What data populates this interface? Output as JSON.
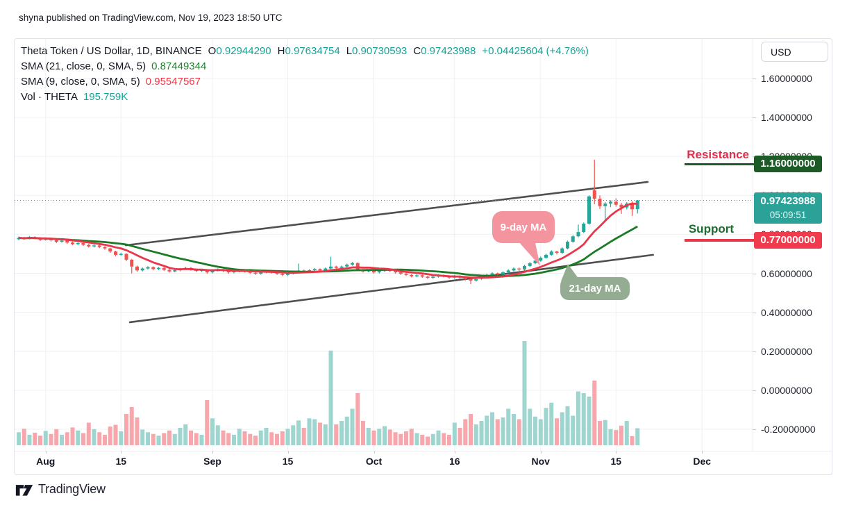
{
  "attribution": "shyna published on TradingView.com, Nov 19, 2023 18:50 UTC",
  "toolbar": {
    "currency_button": "USD"
  },
  "legend": {
    "symbol_title": "Theta Token / US Dollar, 1D, BINANCE",
    "ohlc": [
      {
        "k": "O",
        "v": "0.92944290"
      },
      {
        "k": "H",
        "v": "0.97634754"
      },
      {
        "k": "L",
        "v": "0.90730593"
      },
      {
        "k": "C",
        "v": "0.97423988"
      }
    ],
    "change": "+0.04425604 (+4.76%)",
    "sma21": {
      "label": "SMA (21, close, 0, SMA, 5)",
      "value": "0.87449344"
    },
    "sma9": {
      "label": "SMA (9, close, 0, SMA, 5)",
      "value": "0.95547567"
    },
    "volume": {
      "label": "Vol · THETA",
      "value": "195.759K"
    }
  },
  "annotations": {
    "resistance": {
      "label": "Resistance",
      "price_label": "1.16000000",
      "price": 1.16
    },
    "support": {
      "label": "Support",
      "price_label": "0.77000000",
      "price": 0.77
    },
    "last_price": {
      "price_label": "0.97423988",
      "countdown": "05:09:51",
      "price": 0.97423988
    },
    "ma9_bubble": "9-day MA",
    "ma21_bubble": "21-day MA"
  },
  "price_axis": {
    "labels": [
      {
        "text": "1.60000000",
        "price": 1.6
      },
      {
        "text": "1.40000000",
        "price": 1.4
      },
      {
        "text": "1.20000000",
        "price": 1.2
      },
      {
        "text": "1.00000000",
        "price": 1.0
      },
      {
        "text": "0.80000000",
        "price": 0.8
      },
      {
        "text": "0.60000000",
        "price": 0.6
      },
      {
        "text": "0.40000000",
        "price": 0.4
      },
      {
        "text": "0.20000000",
        "price": 0.2
      },
      {
        "text": "0.00000000",
        "price": 0.0
      },
      {
        "text": "-0.20000000",
        "price": -0.2
      }
    ]
  },
  "time_axis": {
    "labels": [
      {
        "text": "Aug",
        "day": 5
      },
      {
        "text": "15",
        "day": 19
      },
      {
        "text": "Sep",
        "day": 36
      },
      {
        "text": "15",
        "day": 50
      },
      {
        "text": "Oct",
        "day": 66
      },
      {
        "text": "16",
        "day": 81
      },
      {
        "text": "Nov",
        "day": 97
      },
      {
        "text": "15",
        "day": 111
      },
      {
        "text": "Dec",
        "day": 127
      }
    ]
  },
  "footer": {
    "brand": "TradingView"
  },
  "colors": {
    "up": "#26a69a",
    "down": "#ef5350",
    "vol_up": "#9ed5cf",
    "vol_down": "#f7a6ab",
    "sma9_line": "#e8374a",
    "sma21_line": "#1a7a26",
    "accent_teal": "#16a296",
    "badge_teal": "#2aa298",
    "badge_red": "#f23a4f",
    "badge_green": "#1d5b26",
    "resistance_text": "#e22e4e",
    "support_text": "#1c6b2f",
    "bubble_pink": "#f4949f",
    "bubble_green": "#94ad92",
    "channel_gray": "#4f4f4f"
  },
  "chart_data": {
    "type": "candlestick",
    "title": "Theta Token / US Dollar, 1D, BINANCE",
    "symbol": "THETA/USD",
    "exchange": "BINANCE",
    "interval": "1D",
    "first_candle_date": "2023-07-27",
    "last_candle_date": "2023-11-19",
    "price_axis_visible_range": [
      -0.31,
      1.8
    ],
    "grid": true,
    "legend_position": "top-left",
    "sma_windows": [
      9,
      21
    ],
    "candles_ohlc": [
      [
        0.775,
        0.789,
        0.77,
        0.782
      ],
      [
        0.782,
        0.787,
        0.773,
        0.778
      ],
      [
        0.778,
        0.791,
        0.774,
        0.785
      ],
      [
        0.785,
        0.79,
        0.775,
        0.78
      ],
      [
        0.78,
        0.786,
        0.766,
        0.772
      ],
      [
        0.772,
        0.784,
        0.768,
        0.778
      ],
      [
        0.778,
        0.782,
        0.763,
        0.77
      ],
      [
        0.77,
        0.776,
        0.755,
        0.762
      ],
      [
        0.762,
        0.774,
        0.757,
        0.768
      ],
      [
        0.768,
        0.772,
        0.752,
        0.758
      ],
      [
        0.758,
        0.763,
        0.744,
        0.75
      ],
      [
        0.75,
        0.761,
        0.745,
        0.755
      ],
      [
        0.755,
        0.759,
        0.74,
        0.746
      ],
      [
        0.746,
        0.751,
        0.732,
        0.738
      ],
      [
        0.738,
        0.749,
        0.733,
        0.743
      ],
      [
        0.743,
        0.747,
        0.729,
        0.735
      ],
      [
        0.735,
        0.74,
        0.721,
        0.728
      ],
      [
        0.728,
        0.731,
        0.705,
        0.712
      ],
      [
        0.712,
        0.716,
        0.688,
        0.695
      ],
      [
        0.695,
        0.706,
        0.69,
        0.7
      ],
      [
        0.7,
        0.703,
        0.662,
        0.67
      ],
      [
        0.67,
        0.674,
        0.6,
        0.635
      ],
      [
        0.635,
        0.64,
        0.607,
        0.615
      ],
      [
        0.615,
        0.63,
        0.61,
        0.625
      ],
      [
        0.625,
        0.637,
        0.62,
        0.632
      ],
      [
        0.632,
        0.636,
        0.616,
        0.622
      ],
      [
        0.622,
        0.633,
        0.617,
        0.628
      ],
      [
        0.628,
        0.632,
        0.612,
        0.618
      ],
      [
        0.618,
        0.623,
        0.604,
        0.61
      ],
      [
        0.61,
        0.621,
        0.605,
        0.616
      ],
      [
        0.616,
        0.627,
        0.611,
        0.622
      ],
      [
        0.622,
        0.633,
        0.617,
        0.628
      ],
      [
        0.628,
        0.632,
        0.614,
        0.62
      ],
      [
        0.62,
        0.625,
        0.606,
        0.612
      ],
      [
        0.612,
        0.623,
        0.607,
        0.618
      ],
      [
        0.618,
        0.622,
        0.598,
        0.605
      ],
      [
        0.605,
        0.62,
        0.6,
        0.615
      ],
      [
        0.615,
        0.626,
        0.61,
        0.62
      ],
      [
        0.62,
        0.624,
        0.606,
        0.612
      ],
      [
        0.612,
        0.616,
        0.598,
        0.605
      ],
      [
        0.605,
        0.615,
        0.6,
        0.61
      ],
      [
        0.61,
        0.622,
        0.605,
        0.617
      ],
      [
        0.617,
        0.621,
        0.604,
        0.61
      ],
      [
        0.61,
        0.614,
        0.597,
        0.603
      ],
      [
        0.603,
        0.608,
        0.592,
        0.598
      ],
      [
        0.598,
        0.611,
        0.593,
        0.606
      ],
      [
        0.606,
        0.617,
        0.601,
        0.612
      ],
      [
        0.612,
        0.616,
        0.599,
        0.605
      ],
      [
        0.605,
        0.61,
        0.592,
        0.598
      ],
      [
        0.598,
        0.603,
        0.586,
        0.592
      ],
      [
        0.592,
        0.605,
        0.587,
        0.6
      ],
      [
        0.6,
        0.613,
        0.595,
        0.608
      ],
      [
        0.608,
        0.65,
        0.602,
        0.615
      ],
      [
        0.615,
        0.619,
        0.604,
        0.61
      ],
      [
        0.61,
        0.621,
        0.605,
        0.616
      ],
      [
        0.616,
        0.627,
        0.611,
        0.622
      ],
      [
        0.622,
        0.626,
        0.609,
        0.615
      ],
      [
        0.615,
        0.63,
        0.61,
        0.625
      ],
      [
        0.625,
        0.685,
        0.62,
        0.635
      ],
      [
        0.635,
        0.639,
        0.622,
        0.628
      ],
      [
        0.628,
        0.64,
        0.623,
        0.635
      ],
      [
        0.635,
        0.65,
        0.63,
        0.645
      ],
      [
        0.645,
        0.658,
        0.64,
        0.653
      ],
      [
        0.653,
        0.656,
        0.612,
        0.618
      ],
      [
        0.618,
        0.622,
        0.604,
        0.61
      ],
      [
        0.61,
        0.621,
        0.605,
        0.616
      ],
      [
        0.616,
        0.62,
        0.599,
        0.605
      ],
      [
        0.605,
        0.617,
        0.6,
        0.612
      ],
      [
        0.612,
        0.623,
        0.607,
        0.618
      ],
      [
        0.618,
        0.622,
        0.606,
        0.612
      ],
      [
        0.612,
        0.616,
        0.599,
        0.605
      ],
      [
        0.605,
        0.609,
        0.592,
        0.598
      ],
      [
        0.598,
        0.603,
        0.586,
        0.592
      ],
      [
        0.592,
        0.596,
        0.579,
        0.585
      ],
      [
        0.585,
        0.596,
        0.58,
        0.59
      ],
      [
        0.59,
        0.594,
        0.577,
        0.583
      ],
      [
        0.583,
        0.588,
        0.571,
        0.577
      ],
      [
        0.577,
        0.589,
        0.572,
        0.583
      ],
      [
        0.583,
        0.596,
        0.578,
        0.59
      ],
      [
        0.59,
        0.594,
        0.579,
        0.585
      ],
      [
        0.585,
        0.59,
        0.572,
        0.578
      ],
      [
        0.578,
        0.592,
        0.573,
        0.586
      ],
      [
        0.586,
        0.59,
        0.571,
        0.578
      ],
      [
        0.578,
        0.582,
        0.563,
        0.57
      ],
      [
        0.57,
        0.574,
        0.545,
        0.563
      ],
      [
        0.563,
        0.578,
        0.558,
        0.572
      ],
      [
        0.572,
        0.586,
        0.567,
        0.58
      ],
      [
        0.58,
        0.598,
        0.575,
        0.592
      ],
      [
        0.592,
        0.606,
        0.587,
        0.6
      ],
      [
        0.6,
        0.604,
        0.588,
        0.595
      ],
      [
        0.595,
        0.611,
        0.59,
        0.605
      ],
      [
        0.605,
        0.621,
        0.6,
        0.615
      ],
      [
        0.615,
        0.631,
        0.61,
        0.625
      ],
      [
        0.625,
        0.629,
        0.613,
        0.62
      ],
      [
        0.62,
        0.644,
        0.615,
        0.638
      ],
      [
        0.638,
        0.658,
        0.633,
        0.652
      ],
      [
        0.652,
        0.671,
        0.647,
        0.665
      ],
      [
        0.665,
        0.686,
        0.66,
        0.68
      ],
      [
        0.68,
        0.701,
        0.675,
        0.695
      ],
      [
        0.695,
        0.718,
        0.69,
        0.712
      ],
      [
        0.712,
        0.716,
        0.697,
        0.705
      ],
      [
        0.705,
        0.734,
        0.7,
        0.728
      ],
      [
        0.728,
        0.768,
        0.723,
        0.762
      ],
      [
        0.762,
        0.796,
        0.757,
        0.79
      ],
      [
        0.79,
        0.85,
        0.785,
        0.812
      ],
      [
        0.812,
        0.861,
        0.807,
        0.855
      ],
      [
        0.855,
        1.0,
        0.85,
        0.995
      ],
      [
        1.026,
        1.183,
        0.955,
        0.983
      ],
      [
        0.983,
        1.0,
        0.93,
        0.945
      ],
      [
        0.945,
        0.965,
        0.875,
        0.958
      ],
      [
        0.958,
        0.975,
        0.94,
        0.968
      ],
      [
        0.968,
        0.985,
        0.942,
        0.952
      ],
      [
        0.952,
        0.962,
        0.905,
        0.938
      ],
      [
        0.938,
        0.965,
        0.928,
        0.958
      ],
      [
        0.958,
        0.97,
        0.895,
        0.929
      ],
      [
        0.9294,
        0.9763,
        0.9073,
        0.9742
      ]
    ],
    "volumes_k": [
      150,
      190,
      120,
      145,
      110,
      165,
      130,
      185,
      120,
      150,
      205,
      170,
      140,
      260,
      185,
      150,
      120,
      215,
      235,
      160,
      360,
      440,
      320,
      180,
      150,
      130,
      110,
      140,
      170,
      130,
      200,
      240,
      170,
      140,
      120,
      520,
      310,
      230,
      170,
      140,
      120,
      190,
      160,
      130,
      110,
      170,
      200,
      150,
      130,
      160,
      190,
      230,
      285,
      200,
      310,
      300,
      260,
      240,
      1090,
      240,
      280,
      330,
      420,
      600,
      280,
      200,
      170,
      190,
      220,
      180,
      150,
      130,
      160,
      190,
      140,
      120,
      100,
      130,
      170,
      140,
      120,
      260,
      200,
      300,
      360,
      240,
      280,
      340,
      380,
      300,
      320,
      420,
      360,
      300,
      1200,
      420,
      330,
      300,
      430,
      490,
      310,
      380,
      450,
      340,
      620,
      600,
      560,
      745,
      280,
      290,
      185,
      175,
      225,
      280,
      105,
      196
    ],
    "trendlines": [
      {
        "name": "upper-channel",
        "from_day": 19.9,
        "from_price": 0.744,
        "to_day": 116.9,
        "to_price": 1.069
      },
      {
        "name": "lower-channel",
        "from_day": 20.65,
        "from_price": 0.349,
        "to_day": 117.9,
        "to_price": 0.695
      }
    ]
  }
}
